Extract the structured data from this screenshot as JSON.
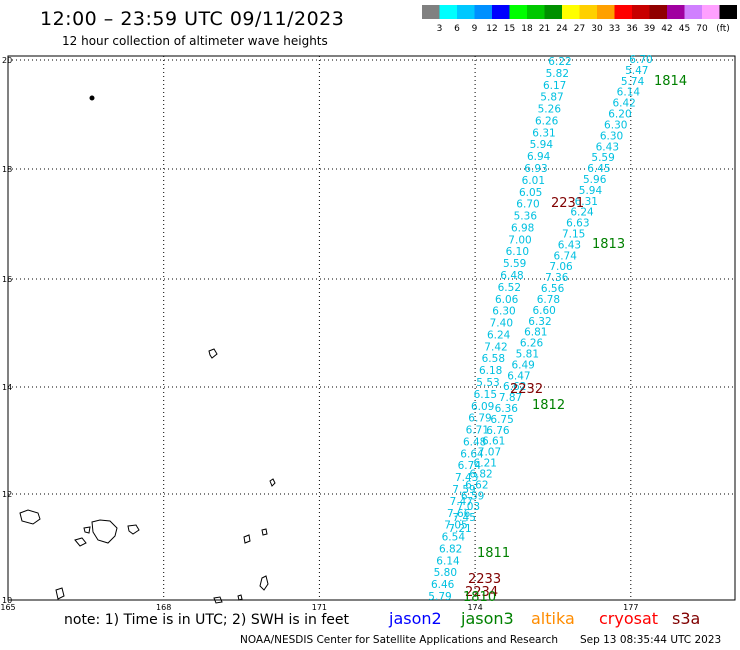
{
  "header": {
    "title": "12:00 – 23:59 UTC 09/11/2023",
    "subtitle": "12 hour collection of altimeter wave heights"
  },
  "legend": {
    "unit": "(ft)",
    "bins": [
      {
        "label": "",
        "color": "#808080"
      },
      {
        "label": "3",
        "color": "#00ffff"
      },
      {
        "label": "6",
        "color": "#00c8ff"
      },
      {
        "label": "9",
        "color": "#0090ff"
      },
      {
        "label": "12",
        "color": "#0000ff"
      },
      {
        "label": "15",
        "color": "#00ff00"
      },
      {
        "label": "18",
        "color": "#00c800"
      },
      {
        "label": "21",
        "color": "#009000"
      },
      {
        "label": "24",
        "color": "#ffff00"
      },
      {
        "label": "27",
        "color": "#ffd000"
      },
      {
        "label": "30",
        "color": "#ffa000"
      },
      {
        "label": "33",
        "color": "#ff0000"
      },
      {
        "label": "36",
        "color": "#c80000"
      },
      {
        "label": "39",
        "color": "#900000"
      },
      {
        "label": "42",
        "color": "#a000a0"
      },
      {
        "label": "45",
        "color": "#d080ff"
      },
      {
        "label": "70",
        "color": "#ffa0ff"
      },
      {
        "label": "",
        "color": "#000000"
      }
    ]
  },
  "axes": {
    "x_ticks": [
      "165",
      "168",
      "171",
      "174",
      "177"
    ],
    "y_ticks": [
      "20",
      "18",
      "16",
      "14",
      "12",
      "10"
    ]
  },
  "tracks": [
    {
      "satellite": "cryosat",
      "color": "#00c0e0",
      "values": [
        "6.22",
        "5.82",
        "6.17",
        "5.87",
        "5.26",
        "6.26",
        "6.31",
        "5.94",
        "6.94",
        "6.93",
        "6.01",
        "6.05",
        "6.70",
        "5.36",
        "6.98",
        "7.00",
        "6.10",
        "5.59",
        "6.48",
        "6.52",
        "6.06",
        "6.30",
        "7.40",
        "6.24",
        "7.42",
        "6.58",
        "6.18",
        "5.53",
        "6.15",
        "6.09",
        "6.79",
        "6.71",
        "6.48",
        "6.64",
        "6.74",
        "7.43",
        "7.59",
        "7.47",
        "7.66",
        "7.05",
        "6.54",
        "6.82",
        "6.14",
        "5.80",
        "6.46",
        "5.79"
      ]
    },
    {
      "satellite": "cryosat",
      "color": "#00c0e0",
      "values": [
        "6.70",
        "5.47",
        "5.74",
        "6.14",
        "6.42",
        "6.20",
        "6.30",
        "6.30",
        "6.43",
        "5.59",
        "6.45",
        "5.96",
        "5.94",
        "6.31",
        "6.24",
        "6.63",
        "7.15",
        "6.43",
        "6.74",
        "7.06",
        "7.36",
        "6.56",
        "6.78",
        "6.60",
        "6.32",
        "6.81",
        "6.26",
        "5.81",
        "6.49",
        "6.47",
        "6.62",
        "7.87",
        "6.36",
        "6.75",
        "6.76",
        "6.61",
        "7.07",
        "6.21",
        "6.82",
        "6.62",
        "6.59",
        "7.03",
        "7.45",
        "7.21"
      ]
    }
  ],
  "track_labels": [
    {
      "text": "1814",
      "color": "#008000"
    },
    {
      "text": "2231",
      "color": "#800000"
    },
    {
      "text": "1813",
      "color": "#008000"
    },
    {
      "text": "2232",
      "color": "#800000"
    },
    {
      "text": "1812",
      "color": "#008000"
    },
    {
      "text": "1811",
      "color": "#008000"
    },
    {
      "text": "2233",
      "color": "#800000"
    },
    {
      "text": "2234",
      "color": "#800000"
    },
    {
      "text": "1810",
      "color": "#008000"
    }
  ],
  "footer": {
    "note": "note:  1) Time is in UTC; 2) SWH is in feet",
    "credit": "NOAA/NESDIS Center for Satellite Applications and Research",
    "timestamp": "Sep 13 08:35:44 UTC 2023",
    "satellites": [
      {
        "name": "jason2",
        "color": "#0000ff"
      },
      {
        "name": "jason3",
        "color": "#008000"
      },
      {
        "name": "altika",
        "color": "#ff8c00"
      },
      {
        "name": "cryosat",
        "color": "#ff0000"
      },
      {
        "name": "s3a",
        "color": "#800000"
      }
    ]
  }
}
